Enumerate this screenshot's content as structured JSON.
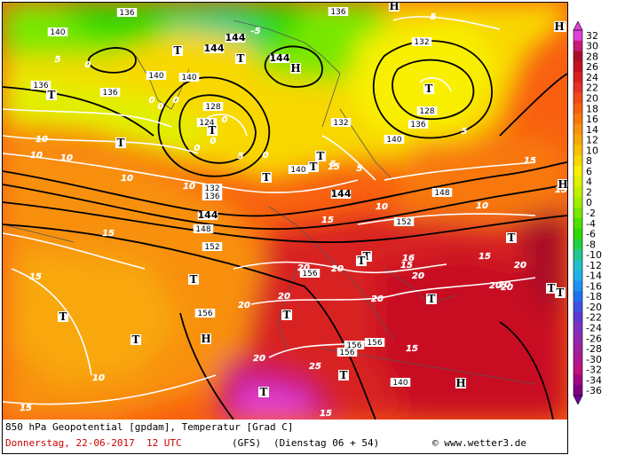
{
  "map": {
    "title": "850 hPa Geopotential [gpdam], Temperatur [Grad C]",
    "date_line": "Donnerstag, 22-06-2017  12 UTC",
    "model": "(GFS)",
    "run": "(Dienstag 06 + 54)",
    "copyright": "© www.wetter3.de"
  },
  "legend": {
    "values": [
      "32",
      "30",
      "28",
      "26",
      "24",
      "22",
      "20",
      "18",
      "16",
      "14",
      "12",
      "10",
      "8",
      "6",
      "4",
      "2",
      "0",
      "-2",
      "-4",
      "-6",
      "-8",
      "-10",
      "-12",
      "-14",
      "-16",
      "-18",
      "-20",
      "-22",
      "-24",
      "-26",
      "-28",
      "-30",
      "-32",
      "-34",
      "-36"
    ],
    "colors": [
      "#e040d8",
      "#c81878",
      "#a81028",
      "#c81020",
      "#d82020",
      "#e83028",
      "#f04818",
      "#f86010",
      "#f87808",
      "#f89010",
      "#f8a808",
      "#f8c000",
      "#f8d800",
      "#f8f000",
      "#e0f000",
      "#c0f000",
      "#a0f000",
      "#78e800",
      "#50e000",
      "#30d800",
      "#20d040",
      "#20c890",
      "#20c0c8",
      "#20b0e8",
      "#2090f0",
      "#2070f0",
      "#4050e0",
      "#6038d0",
      "#8030c0",
      "#9028b0",
      "#a020a0",
      "#b01890",
      "#c01080",
      "#a00880",
      "#800080"
    ],
    "top_arrow_color": "#e040d8",
    "bottom_arrow_color": "#7000a0"
  },
  "pressure_labels": [
    {
      "text": "136"
    },
    {
      "text": "140"
    },
    {
      "text": "144"
    },
    {
      "text": "144"
    },
    {
      "text": "144"
    },
    {
      "text": "140"
    },
    {
      "text": "136"
    },
    {
      "text": "128"
    },
    {
      "text": "124"
    },
    {
      "text": "132"
    },
    {
      "text": "136"
    },
    {
      "text": "140"
    },
    {
      "text": "144"
    },
    {
      "text": "148"
    },
    {
      "text": "152"
    },
    {
      "text": "136"
    },
    {
      "text": "132"
    },
    {
      "text": "128"
    },
    {
      "text": "136"
    },
    {
      "text": "140"
    },
    {
      "text": "148"
    },
    {
      "text": "144"
    },
    {
      "text": "152"
    },
    {
      "text": "156"
    },
    {
      "text": "156"
    },
    {
      "text": "156"
    },
    {
      "text": "156"
    },
    {
      "text": "156"
    },
    {
      "text": "140"
    },
    {
      "text": "136"
    },
    {
      "text": "140"
    },
    {
      "text": "132"
    }
  ],
  "temp_labels": [
    {
      "text": "-5"
    },
    {
      "text": "0"
    },
    {
      "text": "0"
    },
    {
      "text": "5"
    },
    {
      "text": "5"
    },
    {
      "text": "0"
    },
    {
      "text": "0"
    },
    {
      "text": "0"
    },
    {
      "text": "0"
    },
    {
      "text": "5"
    },
    {
      "text": "5"
    },
    {
      "text": "10"
    },
    {
      "text": "10"
    },
    {
      "text": "10"
    },
    {
      "text": "10"
    },
    {
      "text": "10"
    },
    {
      "text": "15"
    },
    {
      "text": "15"
    },
    {
      "text": "15"
    },
    {
      "text": "15"
    },
    {
      "text": "15"
    },
    {
      "text": "15"
    },
    {
      "text": "15"
    },
    {
      "text": "15"
    },
    {
      "text": "20"
    },
    {
      "text": "20"
    },
    {
      "text": "20"
    },
    {
      "text": "20"
    },
    {
      "text": "20"
    },
    {
      "text": "25"
    },
    {
      "text": "20"
    },
    {
      "text": "20"
    },
    {
      "text": "20"
    },
    {
      "text": "10"
    },
    {
      "text": "5"
    },
    {
      "text": "5"
    },
    {
      "text": "10"
    },
    {
      "text": "15"
    },
    {
      "text": "15"
    },
    {
      "text": "5"
    },
    {
      "text": "0"
    },
    {
      "text": "0"
    },
    {
      "text": "10"
    },
    {
      "text": "15"
    },
    {
      "text": "16"
    },
    {
      "text": "20"
    },
    {
      "text": "20"
    },
    {
      "text": "20"
    }
  ],
  "centers": [
    {
      "text": "T"
    },
    {
      "text": "T"
    },
    {
      "text": "T"
    },
    {
      "text": "T"
    },
    {
      "text": "T"
    },
    {
      "text": "H"
    },
    {
      "text": "H"
    },
    {
      "text": "T"
    },
    {
      "text": "T"
    },
    {
      "text": "T"
    },
    {
      "text": "T"
    },
    {
      "text": "T"
    },
    {
      "text": "T"
    },
    {
      "text": "T"
    },
    {
      "text": "H"
    },
    {
      "text": "T"
    },
    {
      "text": "T"
    },
    {
      "text": "T"
    },
    {
      "text": "T"
    },
    {
      "text": "H"
    },
    {
      "text": "T"
    },
    {
      "text": "H"
    },
    {
      "text": "T"
    },
    {
      "text": "T"
    },
    {
      "text": "T"
    },
    {
      "text": "H"
    },
    {
      "text": "T"
    },
    {
      "text": "T"
    }
  ]
}
